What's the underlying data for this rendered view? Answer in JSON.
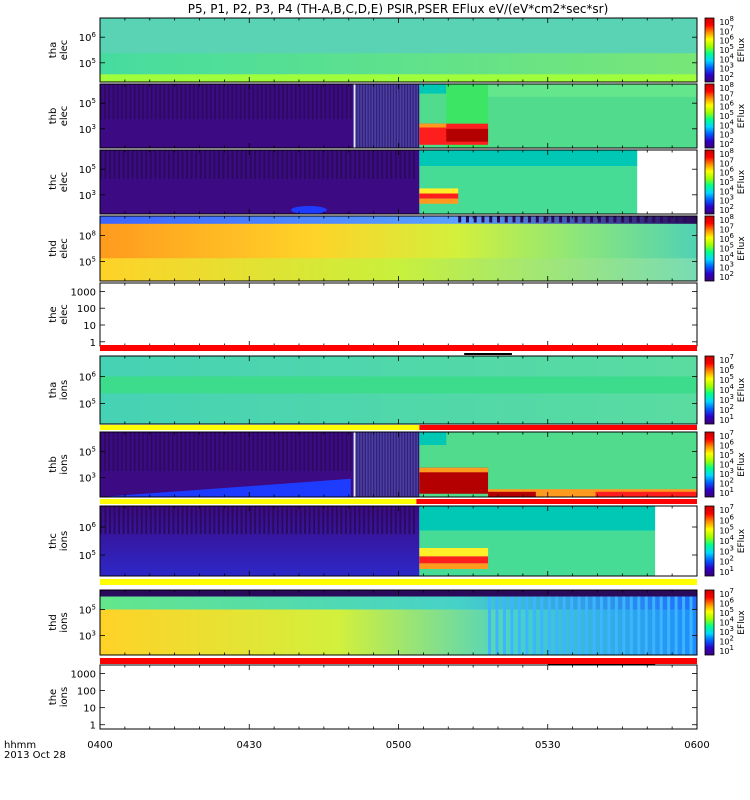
{
  "chart_data": {
    "type": "heatmap",
    "title": "P5, P1, P2, P3, P4 (TH-A,B,C,D,E) PSIR,PSER EFlux eV/(eV*cm2*sec*sr)",
    "time_axis": {
      "ticks": [
        "0400",
        "0430",
        "0500",
        "0530",
        "0600"
      ],
      "range": [
        "0400",
        "0600"
      ],
      "unit_label": "hhmm",
      "date_label": "2013 Oct 28"
    },
    "colorbar_label": "EFlux",
    "colorbar_ticks": {
      "elec": [
        "10^2",
        "10^3",
        "10^4",
        "10^5",
        "10^6",
        "10^7",
        "10^8"
      ],
      "ions": [
        "10^1",
        "10^2",
        "10^3",
        "10^4",
        "10^5",
        "10^6",
        "10^7"
      ]
    },
    "colorbar_colors": [
      "#3a0078",
      "#2d00c8",
      "#0060ff",
      "#00d8ff",
      "#00ff8c",
      "#a0ff00",
      "#ffff00",
      "#ff8c00",
      "#ff0000",
      "#c80000"
    ],
    "panels": [
      {
        "probe": "tha",
        "species": "elec",
        "yticks": [
          "10^5",
          "10^6"
        ],
        "has_colorbar": true
      },
      {
        "probe": "thb",
        "species": "elec",
        "yticks": [
          "10^3",
          "10^5"
        ],
        "has_colorbar": true
      },
      {
        "probe": "thc",
        "species": "elec",
        "yticks": [
          "10^3",
          "10^5"
        ],
        "has_colorbar": true
      },
      {
        "probe": "thd",
        "species": "elec",
        "yticks": [
          "10^5",
          "10^8"
        ],
        "has_colorbar": true
      },
      {
        "probe": "the",
        "species": "elec",
        "yticks": [
          "1",
          "10",
          "100",
          "1000"
        ],
        "has_colorbar": false
      },
      {
        "probe": "tha",
        "species": "ions",
        "yticks": [
          "10^5",
          "10^6"
        ],
        "has_colorbar": true
      },
      {
        "probe": "thb",
        "species": "ions",
        "yticks": [
          "10^3",
          "10^5"
        ],
        "has_colorbar": true
      },
      {
        "probe": "thc",
        "species": "ions",
        "yticks": [
          "10^5",
          "10^6"
        ],
        "has_colorbar": true
      },
      {
        "probe": "thd",
        "species": "ions",
        "yticks": [
          "10^3",
          "10^5"
        ],
        "has_colorbar": true
      },
      {
        "probe": "the",
        "species": "ions",
        "yticks": [
          "1",
          "10",
          "100",
          "1000"
        ],
        "has_colorbar": false
      }
    ]
  }
}
